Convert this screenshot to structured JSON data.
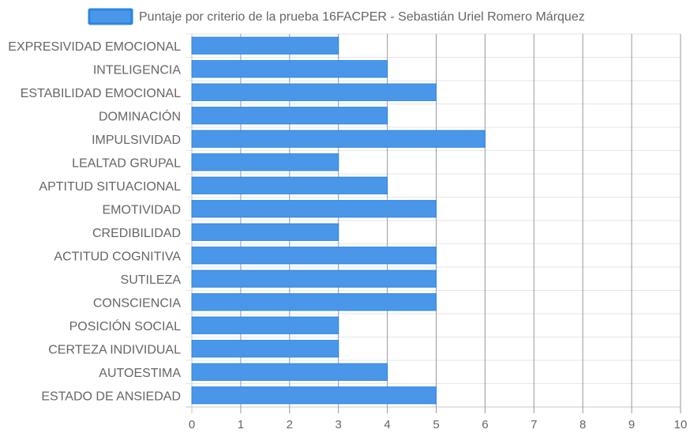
{
  "chart_data": {
    "type": "bar",
    "orientation": "horizontal",
    "categories": [
      "EXPRESIVIDAD EMOCIONAL",
      "INTELIGENCIA",
      "ESTABILIDAD EMOCIONAL",
      "DOMINACIÓN",
      "IMPULSIVIDAD",
      "LEALTAD GRUPAL",
      "APTITUD SITUACIONAL",
      "EMOTIVIDAD",
      "CREDIBILIDAD",
      "ACTITUD COGNITIVA",
      "SUTILEZA",
      "CONSCIENCIA",
      "POSICIÓN SOCIAL",
      "CERTEZA INDIVIDUAL",
      "AUTOESTIMA",
      "ESTADO DE ANSIEDAD"
    ],
    "series": [
      {
        "name": "Puntaje por criterio de la prueba 16FACPER - Sebastián Uriel Romero Márquez",
        "values": [
          3,
          4,
          5,
          4,
          6,
          3,
          4,
          5,
          3,
          5,
          5,
          5,
          3,
          3,
          4,
          5
        ],
        "color": "#4a97ea",
        "border_color": "#2a84e6"
      }
    ],
    "xlim": [
      0,
      10
    ],
    "x_ticks": [
      "0",
      "1",
      "2",
      "3",
      "4",
      "5",
      "6",
      "7",
      "8",
      "9",
      "10"
    ],
    "grid": true,
    "legend_position": "top"
  }
}
